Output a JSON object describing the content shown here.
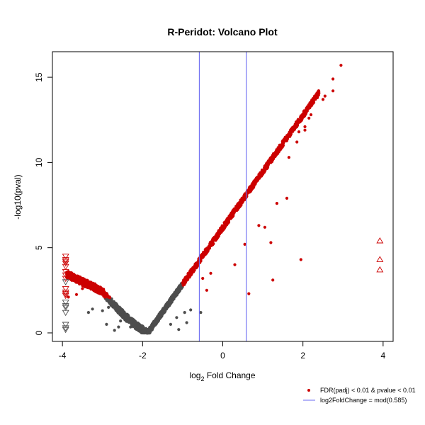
{
  "chart_data": {
    "type": "scatter",
    "title": "R-Peridot: Volcano Plot",
    "xlabel": {
      "prefix": "log",
      "subscript": "2",
      "suffix": " Fold Change"
    },
    "ylabel": "-log10(pval)",
    "xlim": [
      -4.25,
      4.25
    ],
    "ylim": [
      -0.5,
      16.5
    ],
    "x_ticks": [
      -4,
      -2,
      0,
      2,
      4
    ],
    "y_ticks": [
      0,
      5,
      10,
      15
    ],
    "thresholds": {
      "log2fc": 0.585,
      "line_color": "#6a6af2"
    },
    "colors": {
      "significant": "#cc0000",
      "nonsignificant": "#4d4d4d",
      "threshold_line": "#6a6af2"
    },
    "grid": false,
    "legend": {
      "position": "bottom-right",
      "entries": [
        {
          "label": "FDR(padj) < 0.01 & pvalue < 0.01",
          "marker": "dot",
          "color": "#cc0000"
        },
        {
          "label": "log2FoldChange = mod(0.585)",
          "marker": "line",
          "color": "#6a6af2"
        }
      ]
    },
    "trend": {
      "vertex_x": -1.88,
      "vertex_y": 0.0,
      "slope_right": 3.3,
      "slope_left": 1.35,
      "left_shoulder_x": -3.0,
      "left_shoulder_y": 2.45
    },
    "significant_outliers": [
      [
        2.95,
        15.7
      ],
      [
        2.75,
        14.9
      ],
      [
        2.75,
        14.2
      ],
      [
        2.55,
        13.9
      ],
      [
        2.5,
        13.7
      ],
      [
        2.2,
        12.8
      ],
      [
        2.15,
        12.6
      ],
      [
        2.05,
        12.1
      ],
      [
        2.05,
        11.9
      ],
      [
        1.9,
        11.8
      ],
      [
        1.85,
        11.2
      ],
      [
        1.65,
        10.3
      ],
      [
        1.6,
        7.9
      ],
      [
        1.35,
        7.6
      ],
      [
        1.2,
        5.3
      ],
      [
        0.9,
        6.3
      ],
      [
        1.05,
        6.2
      ],
      [
        0.55,
        5.2
      ],
      [
        1.95,
        4.3
      ],
      [
        1.25,
        3.1
      ],
      [
        0.65,
        2.3
      ],
      [
        -0.4,
        2.5
      ],
      [
        -0.5,
        3.2
      ],
      [
        -0.3,
        3.5
      ],
      [
        0.3,
        4.0
      ],
      [
        -3.85,
        2.1
      ],
      [
        -3.65,
        2.25
      ],
      [
        -3.5,
        2.6
      ],
      [
        -3.3,
        2.7
      ]
    ],
    "nonsignificant_outliers": [
      [
        -3.35,
        1.2
      ],
      [
        -3.0,
        1.3
      ],
      [
        -3.25,
        1.4
      ],
      [
        -2.85,
        1.5
      ],
      [
        -2.55,
        0.7
      ],
      [
        -2.6,
        0.35
      ],
      [
        -2.7,
        0.15
      ],
      [
        -2.3,
        0.35
      ],
      [
        -1.3,
        0.5
      ],
      [
        -1.15,
        0.9
      ],
      [
        -0.95,
        1.2
      ],
      [
        -0.9,
        0.6
      ],
      [
        -0.55,
        1.2
      ],
      [
        -0.8,
        1.35
      ],
      [
        -1.1,
        0.2
      ],
      [
        -2.9,
        0.5
      ]
    ],
    "clipped_points": {
      "left_significant_y": [
        4.5,
        4.3,
        4.2,
        4.1,
        3.9,
        3.6,
        3.4,
        3.2,
        2.6,
        2.4,
        2.3,
        2.2
      ],
      "left_nonsignificant_y": [
        3.0,
        1.8,
        1.6,
        1.5,
        1.2,
        0.5,
        0.3,
        0.2
      ],
      "right_significant_y": [
        5.4,
        4.3,
        3.7
      ],
      "left_x": -3.92,
      "right_x": 3.92
    }
  }
}
